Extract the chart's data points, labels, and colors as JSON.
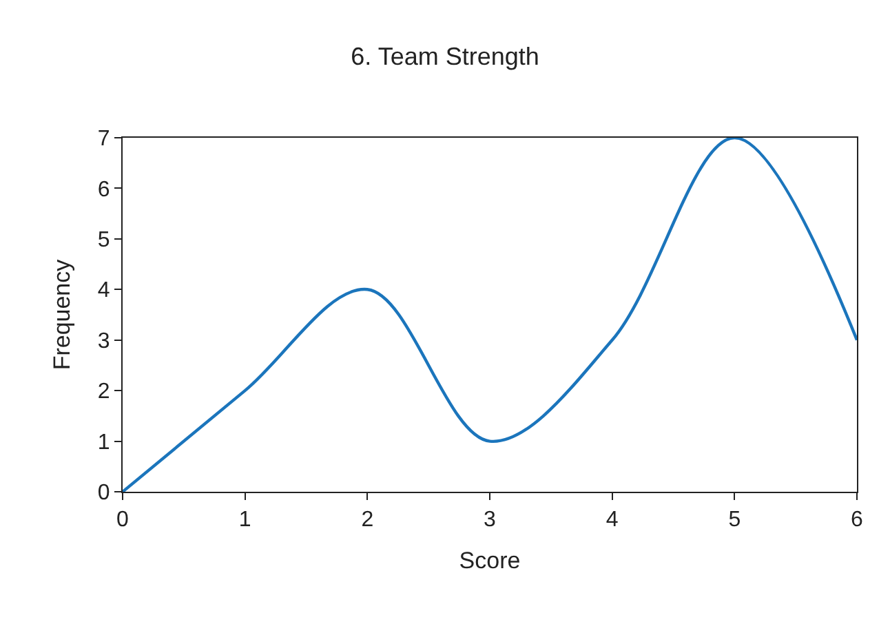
{
  "chart_data": {
    "type": "line",
    "title": "6. Team Strength",
    "xlabel": "Score",
    "ylabel": "Frequency",
    "x": [
      0,
      1,
      2,
      3,
      4,
      5,
      6
    ],
    "series": [
      {
        "color": "#1b75bc",
        "values": [
          0,
          2,
          4,
          1,
          3,
          7,
          3
        ]
      }
    ],
    "xlim": [
      0,
      6
    ],
    "xticks": [
      0,
      1,
      2,
      3,
      4,
      5,
      6
    ],
    "ylim": [
      0,
      7
    ],
    "yticks": [
      0,
      1,
      2,
      3,
      4,
      5,
      6,
      7
    ],
    "grid": false,
    "marker": "none",
    "line_style": "solid"
  }
}
